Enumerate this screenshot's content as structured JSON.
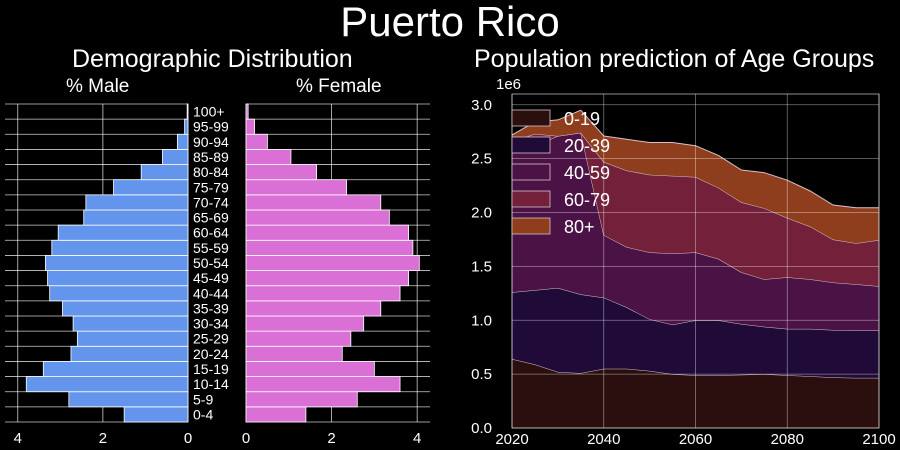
{
  "page": {
    "title": "Puerto Rico",
    "background": "#000000"
  },
  "chart_data": [
    {
      "type": "bar",
      "orientation": "horizontal",
      "title": "Demographic Distribution",
      "age_groups": [
        "0-4",
        "5-9",
        "10-14",
        "15-19",
        "20-24",
        "25-29",
        "30-34",
        "35-39",
        "40-44",
        "45-49",
        "50-54",
        "55-59",
        "60-64",
        "65-69",
        "70-74",
        "75-79",
        "80-84",
        "85-89",
        "90-94",
        "95-99",
        "100+"
      ],
      "series": [
        {
          "name": "% Male",
          "color": "#6495ED",
          "values": [
            1.5,
            2.8,
            3.8,
            3.4,
            2.75,
            2.6,
            2.7,
            2.95,
            3.25,
            3.3,
            3.35,
            3.2,
            3.05,
            2.45,
            2.4,
            1.75,
            1.1,
            0.6,
            0.25,
            0.08,
            0.02
          ]
        },
        {
          "name": "% Female",
          "color": "#DA70D6",
          "values": [
            1.4,
            2.6,
            3.6,
            3.0,
            2.25,
            2.45,
            2.75,
            3.15,
            3.6,
            3.8,
            4.05,
            3.9,
            3.8,
            3.35,
            3.15,
            2.35,
            1.65,
            1.05,
            0.5,
            0.2,
            0.05
          ]
        }
      ],
      "male_axis": {
        "ticks": [
          4,
          2,
          0
        ],
        "lim": [
          4.3,
          0
        ]
      },
      "female_axis": {
        "ticks": [
          0,
          2,
          4
        ],
        "lim": [
          0,
          4.3
        ]
      },
      "grid": true
    },
    {
      "type": "area",
      "stacked": true,
      "title": "Population prediction of Age Groups",
      "x": [
        2020,
        2025,
        2030,
        2035,
        2040,
        2045,
        2050,
        2055,
        2060,
        2065,
        2070,
        2075,
        2080,
        2085,
        2090,
        2095,
        2100
      ],
      "series": [
        {
          "name": "0-19",
          "color": "#2b0f0f",
          "values": [
            640000,
            590000,
            520000,
            510000,
            550000,
            550000,
            530000,
            500000,
            490000,
            490000,
            495000,
            500000,
            490000,
            480000,
            470000,
            465000,
            465000
          ]
        },
        {
          "name": "20-39",
          "color": "#1f0a38",
          "values": [
            620000,
            690000,
            780000,
            730000,
            660000,
            570000,
            480000,
            460000,
            510000,
            510000,
            470000,
            440000,
            430000,
            440000,
            440000,
            440000,
            440000
          ]
        },
        {
          "name": "40-59",
          "color": "#4a1245",
          "values": [
            1400000,
            1340000,
            1410000,
            1500000,
            580000,
            560000,
            620000,
            660000,
            630000,
            570000,
            480000,
            440000,
            480000,
            460000,
            440000,
            430000,
            410000
          ]
        },
        {
          "name": "60-79",
          "color": "#73203a",
          "values": [
            0,
            110000,
            0,
            0,
            680000,
            710000,
            720000,
            720000,
            700000,
            660000,
            650000,
            660000,
            550000,
            490000,
            400000,
            380000,
            430000
          ]
        },
        {
          "name": "80+",
          "color": "#8f3e1d",
          "values": [
            60000,
            110000,
            150000,
            210000,
            240000,
            290000,
            300000,
            310000,
            290000,
            300000,
            300000,
            330000,
            350000,
            330000,
            320000,
            330000,
            300000
          ]
        }
      ],
      "y_offset_label": "1e6",
      "xlim": [
        2020,
        2100
      ],
      "ylim": [
        0,
        3100000
      ],
      "x_ticks": [
        2020,
        2040,
        2060,
        2080,
        2100
      ],
      "y_ticks": [
        {
          "value": 0,
          "label": "0.0"
        },
        {
          "value": 500000,
          "label": "0.5"
        },
        {
          "value": 1000000,
          "label": "1.0"
        },
        {
          "value": 1500000,
          "label": "1.5"
        },
        {
          "value": 2000000,
          "label": "2.0"
        },
        {
          "value": 2500000,
          "label": "2.5"
        },
        {
          "value": 3000000,
          "label": "3.0"
        }
      ],
      "legend": "top-left",
      "grid": true
    }
  ]
}
